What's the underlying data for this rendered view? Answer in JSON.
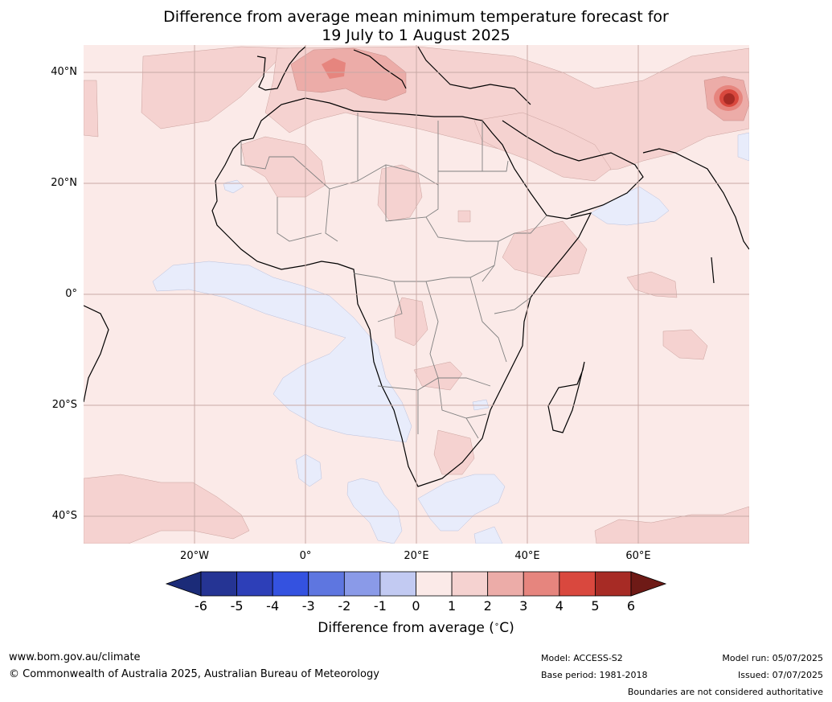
{
  "title": {
    "line1": "Difference from average mean minimum temperature forecast for",
    "line2": "19 July to 1 August 2025"
  },
  "map": {
    "lat_labels": [
      "40°N",
      "20°N",
      "0°",
      "20°S",
      "40°S"
    ],
    "lon_labels": [
      "20°W",
      "0°",
      "20°E",
      "40°E",
      "60°E"
    ],
    "extent": {
      "lon_min": -40,
      "lon_max": 80,
      "lat_min": -45,
      "lat_max": 45
    },
    "gridlines": true
  },
  "colorbar": {
    "ticks": [
      "-6",
      "-5",
      "-4",
      "-3",
      "-2",
      "-1",
      "0",
      "1",
      "2",
      "3",
      "4",
      "5",
      "6"
    ],
    "colors": [
      "#253494",
      "#2d3fb8",
      "#3452e0",
      "#5e76e0",
      "#8a9ae8",
      "#c2caf2",
      "#e8ecfb",
      "#fbeae8",
      "#f5d2d0",
      "#ecaca8",
      "#e6857e",
      "#d9483e",
      "#a72b25"
    ],
    "under_color": "#1b2b78",
    "over_color": "#6e1a16",
    "label": "Difference from average (°C)",
    "label_prefix": "Difference from average (",
    "label_unit": "C",
    "label_suffix": ")"
  },
  "footer": {
    "site": "www.bom.gov.au/climate",
    "copyright": "© Commonwealth of Australia 2025, Australian Bureau of Meteorology",
    "model": "Model: ACCESS-S2",
    "base_period": "Base period: 1981-2018",
    "model_run": "Model run: 05/07/2025",
    "issued": "Issued: 07/07/2025",
    "disclaimer": "Boundaries are not considered authoritative"
  }
}
